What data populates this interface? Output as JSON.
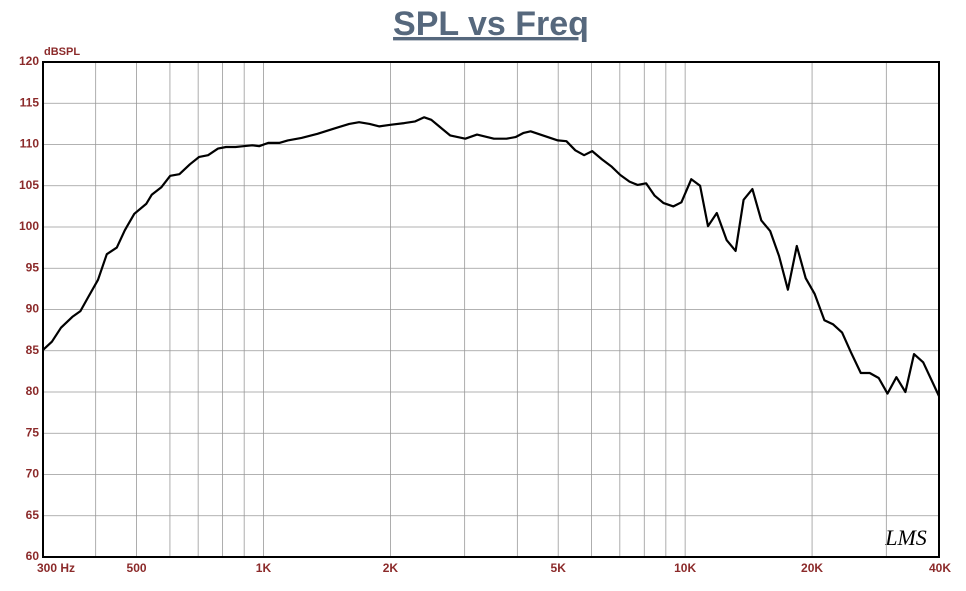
{
  "chart_data": {
    "type": "line",
    "title": "SPL vs Freq",
    "y_label": "dBSPL",
    "watermark": "LMS",
    "xscale": "log",
    "xlim": [
      300,
      40000
    ],
    "ylim": [
      60,
      120
    ],
    "xticks": [
      {
        "value": 300,
        "label": "300 Hz"
      },
      500,
      {
        "value": 1000,
        "label": "1K"
      },
      {
        "value": 2000,
        "label": "2K"
      },
      {
        "value": 5000,
        "label": "5K"
      },
      {
        "value": 10000,
        "label": "10K"
      },
      {
        "value": 20000,
        "label": "20K"
      },
      {
        "value": 40000,
        "label": "40K"
      }
    ],
    "xminor": [
      400,
      600,
      700,
      800,
      900,
      3000,
      4000,
      6000,
      7000,
      8000,
      9000,
      30000
    ],
    "yticks": [
      60,
      65,
      70,
      75,
      80,
      85,
      90,
      95,
      100,
      105,
      110,
      115,
      120
    ],
    "grid": true,
    "x": [
      300,
      315,
      331,
      352,
      368,
      384,
      405,
      425,
      449,
      469,
      494,
      527,
      543,
      572,
      601,
      632,
      669,
      704,
      739,
      780,
      815,
      859,
      896,
      941,
      977,
      1026,
      1090,
      1142,
      1231,
      1343,
      1464,
      1597,
      1686,
      1785,
      1883,
      2010,
      2158,
      2290,
      2405,
      2500,
      2610,
      2770,
      3010,
      3210,
      3520,
      3770,
      3960,
      4140,
      4300,
      4600,
      4990,
      5230,
      5490,
      5760,
      6020,
      6350,
      6700,
      7020,
      7380,
      7710,
      8080,
      8470,
      8890,
      9380,
      9800,
      10340,
      10850,
      11330,
      11890,
      12550,
      13170,
      13760,
      14440,
      15160,
      15910,
      16700,
      17530,
      18400,
      19320,
      20280,
      21390,
      22450,
      23570,
      24740,
      26100,
      27400,
      28770,
      30200,
      31700,
      33300,
      34900,
      36700,
      40000
    ],
    "series": [
      {
        "name": "SPL",
        "color": "#000000",
        "values": [
          85.1,
          86.1,
          87.8,
          89.1,
          89.8,
          91.5,
          93.6,
          96.7,
          97.5,
          99.6,
          101.6,
          102.8,
          103.9,
          104.8,
          106.2,
          106.4,
          107.6,
          108.5,
          108.7,
          109.5,
          109.7,
          109.7,
          109.8,
          109.9,
          109.8,
          110.2,
          110.2,
          110.5,
          110.8,
          111.3,
          111.9,
          112.5,
          112.7,
          112.5,
          112.2,
          112.4,
          112.6,
          112.8,
          113.3,
          113.0,
          112.2,
          111.1,
          110.7,
          111.2,
          110.7,
          110.7,
          110.9,
          111.4,
          111.6,
          111.1,
          110.5,
          110.4,
          109.3,
          108.7,
          109.2,
          108.2,
          107.3,
          106.3,
          105.5,
          105.1,
          105.3,
          103.8,
          102.9,
          102.5,
          103.0,
          105.8,
          105.0,
          100.1,
          101.7,
          98.4,
          97.1,
          103.3,
          104.6,
          100.8,
          99.5,
          96.5,
          92.4,
          97.7,
          93.8,
          91.9,
          88.7,
          88.2,
          87.2,
          84.8,
          82.3,
          82.3,
          81.7,
          79.8,
          81.8,
          80.0,
          84.6,
          83.6,
          79.5
        ]
      }
    ]
  }
}
